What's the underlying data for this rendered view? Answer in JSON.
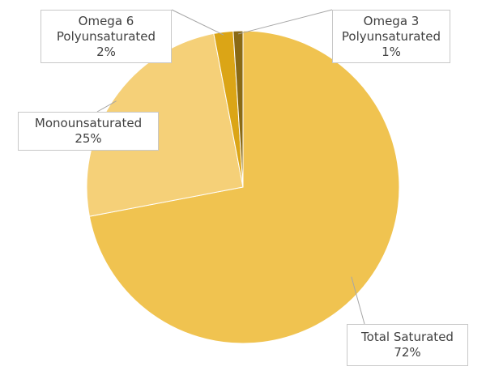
{
  "chart_data": {
    "type": "pie",
    "categories": [
      "Total Saturated",
      "Monounsaturated",
      "Omega 6 Polyunsaturated",
      "Omega 3 Polyunsaturated"
    ],
    "values": [
      72,
      25,
      2,
      1
    ],
    "value_labels": [
      "72%",
      "25%",
      "2%",
      "1%"
    ],
    "colors": [
      "#f0c350",
      "#f5d078",
      "#dba516",
      "#8a6a14"
    ]
  }
}
